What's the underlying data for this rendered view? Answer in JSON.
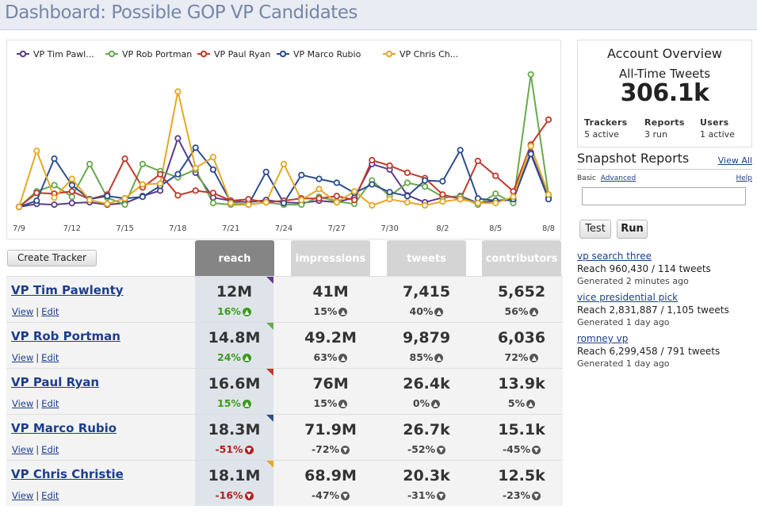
{
  "page": {
    "title": "Dashboard: Possible GOP VP Candidates"
  },
  "chart_data": {
    "type": "line",
    "x": [
      "7/9",
      "7/10",
      "7/11",
      "7/12",
      "7/13",
      "7/14",
      "7/15",
      "7/16",
      "7/17",
      "7/18",
      "7/19",
      "7/20",
      "7/21",
      "7/22",
      "7/23",
      "7/24",
      "7/25",
      "7/26",
      "7/27",
      "7/28",
      "7/29",
      "7/30",
      "7/31",
      "8/1",
      "8/2",
      "8/3",
      "8/4",
      "8/5",
      "8/6",
      "8/7",
      "8/8"
    ],
    "x_tick_labels": [
      "7/9",
      "7/12",
      "7/15",
      "7/18",
      "7/21",
      "7/24",
      "7/27",
      "7/30",
      "8/2",
      "8/5",
      "8/8"
    ],
    "y_range": [
      0,
      175
    ],
    "series": [
      {
        "name": "VP Tim Pawl...",
        "color": "#5b3c87",
        "values": [
          0,
          4,
          3,
          5,
          6,
          3,
          5,
          14,
          21,
          88,
          44,
          12,
          8,
          6,
          9,
          6,
          5,
          8,
          6,
          12,
          55,
          48,
          15,
          6,
          12,
          14,
          5,
          8,
          9,
          70,
          12
        ]
      },
      {
        "name": "VP Rob Portman",
        "color": "#6aa84f",
        "values": [
          0,
          20,
          28,
          13,
          55,
          12,
          3,
          55,
          46,
          38,
          48,
          5,
          3,
          3,
          6,
          3,
          3,
          13,
          7,
          4,
          34,
          14,
          31,
          26,
          13,
          13,
          3,
          17,
          5,
          170,
          16
        ]
      },
      {
        "name": "VP Paul Ryan",
        "color": "#c0392b",
        "values": [
          0,
          18,
          17,
          20,
          10,
          16,
          62,
          25,
          42,
          15,
          21,
          18,
          8,
          10,
          6,
          8,
          11,
          11,
          14,
          9,
          60,
          53,
          44,
          37,
          16,
          10,
          59,
          40,
          20,
          80,
          112
        ]
      },
      {
        "name": "VP Marco Rubio",
        "color": "#2c4d8f",
        "values": [
          0,
          8,
          62,
          28,
          10,
          14,
          11,
          13,
          27,
          42,
          76,
          48,
          6,
          3,
          45,
          5,
          41,
          36,
          31,
          18,
          29,
          19,
          14,
          34,
          33,
          73,
          11,
          8,
          10,
          68,
          10
        ]
      },
      {
        "name": "VP Chris Ch...",
        "color": "#e5a824",
        "values": [
          0,
          72,
          12,
          36,
          9,
          4,
          11,
          29,
          30,
          148,
          50,
          64,
          5,
          3,
          6,
          55,
          9,
          23,
          6,
          20,
          2,
          10,
          6,
          2,
          7,
          10,
          5,
          5,
          13,
          78,
          16
        ]
      }
    ]
  },
  "toolbar": {
    "create_tracker": "Create Tracker"
  },
  "tabs": [
    {
      "label": "reach"
    },
    {
      "label": "impressions"
    },
    {
      "label": "tweets"
    },
    {
      "label": "contributors"
    }
  ],
  "row_links": {
    "view": "View",
    "edit": "Edit",
    "sep": "|"
  },
  "rows": [
    {
      "name": "VP Tim Pawlenty",
      "color": "#5b3c87",
      "reach": "12M",
      "reach_pct": "16%",
      "reach_dir": "up",
      "impressions": "41M",
      "impressions_pct": "15%",
      "impressions_dir": "up",
      "tweets": "7,415",
      "tweets_pct": "40%",
      "tweets_dir": "up",
      "contributors": "5,652",
      "contributors_pct": "56%",
      "contributors_dir": "up"
    },
    {
      "name": "VP Rob Portman",
      "color": "#6aa84f",
      "reach": "14.8M",
      "reach_pct": "24%",
      "reach_dir": "up",
      "impressions": "49.2M",
      "impressions_pct": "63%",
      "impressions_dir": "up",
      "tweets": "9,879",
      "tweets_pct": "85%",
      "tweets_dir": "up",
      "contributors": "6,036",
      "contributors_pct": "72%",
      "contributors_dir": "up"
    },
    {
      "name": "VP Paul Ryan",
      "color": "#c0392b",
      "reach": "16.6M",
      "reach_pct": "15%",
      "reach_dir": "up",
      "impressions": "76M",
      "impressions_pct": "15%",
      "impressions_dir": "up",
      "tweets": "26.4k",
      "tweets_pct": "0%",
      "tweets_dir": "up",
      "contributors": "13.9k",
      "contributors_pct": "5%",
      "contributors_dir": "up"
    },
    {
      "name": "VP Marco Rubio",
      "color": "#2c4d8f",
      "reach": "18.3M",
      "reach_pct": "-51%",
      "reach_dir": "down",
      "impressions": "71.9M",
      "impressions_pct": "-72%",
      "impressions_dir": "down",
      "tweets": "26.7k",
      "tweets_pct": "-52%",
      "tweets_dir": "down",
      "contributors": "15.1k",
      "contributors_pct": "-45%",
      "contributors_dir": "down"
    },
    {
      "name": "VP Chris Christie",
      "color": "#e5a824",
      "reach": "18.1M",
      "reach_pct": "-16%",
      "reach_dir": "down",
      "impressions": "68.9M",
      "impressions_pct": "-47%",
      "impressions_dir": "down",
      "tweets": "20.3k",
      "tweets_pct": "-31%",
      "tweets_dir": "down",
      "contributors": "12.5k",
      "contributors_pct": "-23%",
      "contributors_dir": "down"
    }
  ],
  "account": {
    "title": "Account Overview",
    "subtitle": "All-Time Tweets",
    "total": "306.1k",
    "stats": [
      {
        "label": "Trackers",
        "value": "5 active"
      },
      {
        "label": "Reports",
        "value": "3 run"
      },
      {
        "label": "Users",
        "value": "1 active"
      }
    ]
  },
  "snapshot": {
    "title": "Snapshot Reports",
    "view_all": "View All",
    "mode_basic": "Basic",
    "mode_advanced": "Advanced",
    "help": "Help",
    "input_value": "",
    "test_label": "Test",
    "run_label": "Run",
    "reports": [
      {
        "name": "vp search three",
        "reach": "Reach 960,430 / 114 tweets",
        "generated": "Generated 2 minutes ago"
      },
      {
        "name": "vice presidential pick",
        "reach": "Reach 2,831,887 / 1,105 tweets",
        "generated": "Generated 1 day ago"
      },
      {
        "name": "romney vp",
        "reach": "Reach 6,299,458 / 791 tweets",
        "generated": "Generated 1 day ago"
      }
    ]
  }
}
